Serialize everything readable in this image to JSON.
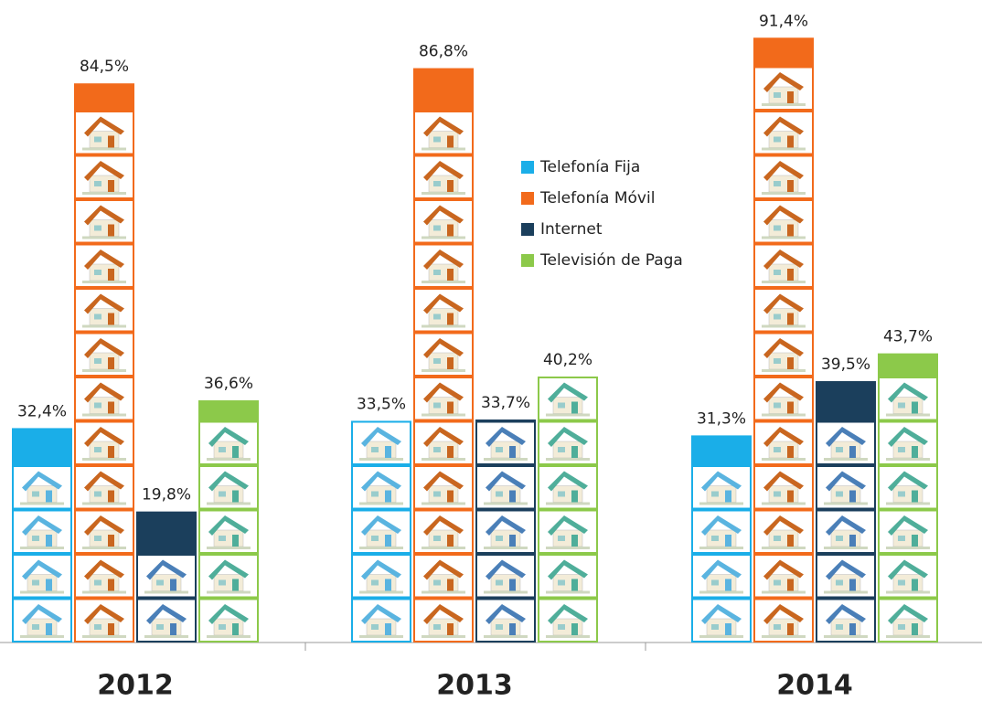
{
  "chart_data": {
    "type": "bar",
    "categories": [
      "2012",
      "2013",
      "2014"
    ],
    "series": [
      {
        "name": "Telefonía Fija",
        "color": "#1aaee8",
        "values": [
          32.4,
          33.5,
          31.3
        ],
        "value_labels": [
          "32,4%",
          "33,5%",
          "31,3%"
        ]
      },
      {
        "name": "Telefonía Móvil",
        "color": "#f26a1b",
        "values": [
          84.5,
          86.8,
          91.4
        ],
        "value_labels": [
          "84,5%",
          "86,8%",
          "91,4%"
        ]
      },
      {
        "name": "Internet",
        "color": "#1b3f5c",
        "values": [
          19.8,
          33.7,
          39.5
        ],
        "value_labels": [
          "19,8%",
          "33,7%",
          "39,5%"
        ]
      },
      {
        "name": "Televisión de Paga",
        "color": "#8cc94a",
        "values": [
          36.6,
          40.2,
          43.7
        ],
        "value_labels": [
          "36,6%",
          "40,2%",
          "43,7%"
        ]
      }
    ]
  }
}
